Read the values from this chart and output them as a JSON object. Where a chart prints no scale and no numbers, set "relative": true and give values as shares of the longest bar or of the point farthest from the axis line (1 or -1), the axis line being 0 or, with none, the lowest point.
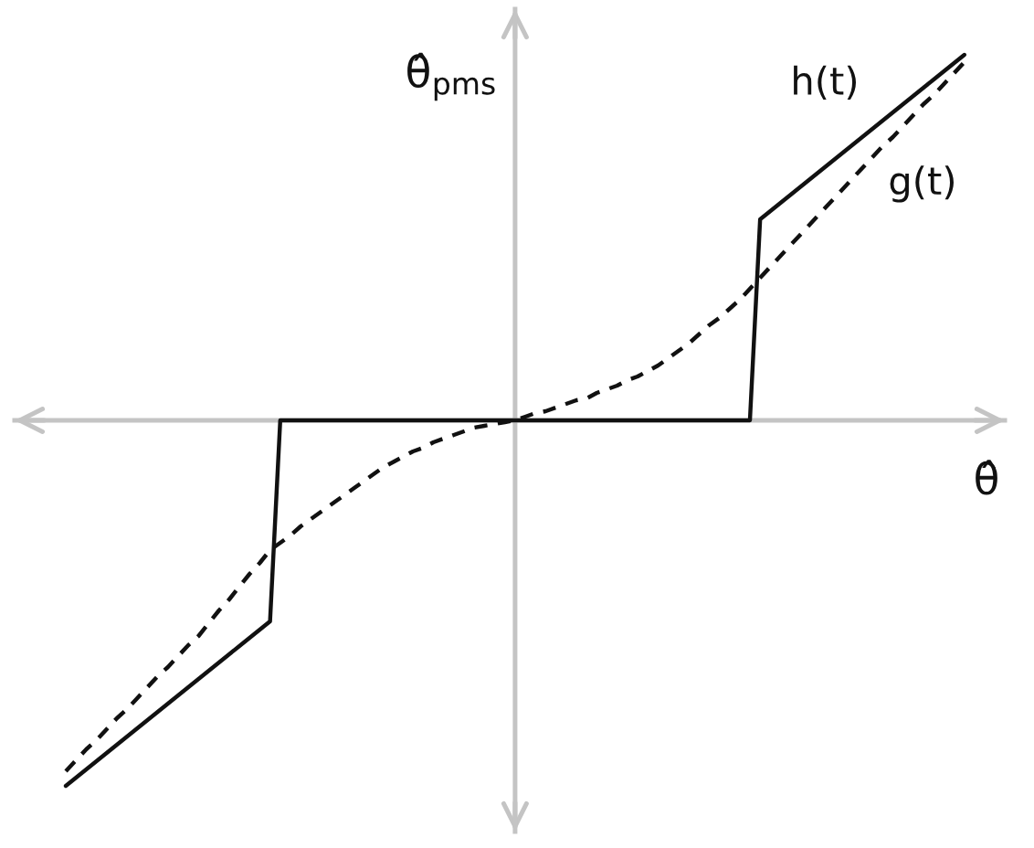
{
  "chart_data": {
    "type": "line",
    "relative": true,
    "tick_labels": false,
    "xlabel": "θ̂",
    "ylabel": "θ̂$_{pms}$",
    "marker": "none",
    "categories": [
      null,
      null,
      null,
      null,
      null,
      null,
      null,
      null,
      null,
      null,
      null,
      null,
      null,
      null,
      null,
      null,
      null,
      null,
      null,
      null,
      null,
      null,
      null,
      null,
      null,
      null,
      null,
      null,
      null,
      null,
      null,
      null,
      null,
      null,
      null,
      null,
      null,
      null,
      null,
      null,
      null,
      null,
      null,
      null,
      null,
      null,
      null,
      null,
      null,
      null,
      null,
      null,
      null,
      null,
      null,
      null,
      null,
      null,
      null,
      null,
      null,
      null,
      null,
      null,
      null,
      null,
      null,
      null,
      null,
      null,
      null,
      null,
      null,
      null,
      null,
      null,
      null,
      null,
      null,
      null,
      null,
      null,
      null,
      null,
      null,
      null,
      null,
      null,
      null
    ],
    "series": [
      {
        "name": "h(t)",
        "color": "#111111",
        "line_style": "solid",
        "values": [
          -1,
          -0.9775,
          -0.955,
          -0.9325,
          -0.91,
          -0.8875,
          -0.865,
          -0.8425,
          -0.82,
          -0.7975,
          -0.775,
          -0.7525,
          -0.73,
          -0.7075,
          -0.685,
          -0.6625,
          -0.64,
          -0.6175,
          -0.595,
          -0.5725,
          -0.55,
          0,
          0,
          0,
          0,
          0,
          0,
          0,
          0,
          0,
          0,
          0,
          0,
          0,
          0,
          0,
          0,
          0,
          0,
          0,
          0,
          0,
          0,
          0,
          0,
          0,
          0,
          0,
          0,
          0,
          0,
          0,
          0,
          0,
          0,
          0,
          0,
          0,
          0,
          0,
          0,
          0,
          0,
          0,
          0,
          0,
          0,
          0,
          0.55,
          0.5725,
          0.595,
          0.6175,
          0.64,
          0.6625,
          0.685,
          0.7075,
          0.73,
          0.7525,
          0.775,
          0.7975,
          0.82,
          0.8425,
          0.865,
          0.8875,
          0.91,
          0.9325,
          0.955,
          0.9775,
          1
        ]
      },
      {
        "name": "g(t)",
        "color": "#111111",
        "line_style": "dashed",
        "values": [
          -0.96,
          -0.93,
          -0.9,
          -0.875,
          -0.845,
          -0.815,
          -0.79,
          -0.76,
          -0.73,
          -0.7,
          -0.675,
          -0.645,
          -0.615,
          -0.59,
          -0.555,
          -0.52,
          -0.49,
          -0.455,
          -0.42,
          -0.39,
          -0.355,
          -0.335,
          -0.315,
          -0.29,
          -0.27,
          -0.25,
          -0.23,
          -0.21,
          -0.19,
          -0.17,
          -0.15,
          -0.13,
          -0.115,
          -0.1,
          -0.085,
          -0.075,
          -0.06,
          -0.05,
          -0.04,
          -0.03,
          -0.02,
          -0.015,
          -0.01,
          -0.005,
          0,
          0.01,
          0.02,
          0.025,
          0.035,
          0.045,
          0.055,
          0.06,
          0.075,
          0.085,
          0.095,
          0.11,
          0.12,
          0.135,
          0.15,
          0.17,
          0.19,
          0.21,
          0.235,
          0.26,
          0.28,
          0.305,
          0.33,
          0.36,
          0.39,
          0.42,
          0.45,
          0.48,
          0.51,
          0.54,
          0.57,
          0.6,
          0.63,
          0.66,
          0.69,
          0.72,
          0.75,
          0.775,
          0.805,
          0.835,
          0.865,
          0.89,
          0.92,
          0.95,
          0.98
        ]
      }
    ]
  }
}
